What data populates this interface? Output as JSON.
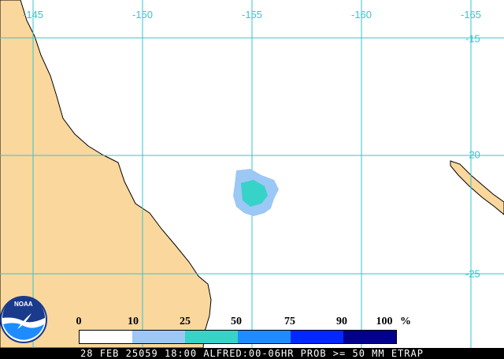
{
  "map": {
    "longitude_labels": [
      "-145",
      "-150",
      "-155",
      "-160",
      "-165"
    ],
    "latitude_labels": [
      "-15",
      "-20",
      "-25"
    ]
  },
  "legend": {
    "ticks": [
      "0",
      "10",
      "25",
      "50",
      "75",
      "90",
      "100"
    ],
    "unit": "%",
    "colors": [
      "#ffffff",
      "#9bc8f5",
      "#37d3c8",
      "#1e8cff",
      "#0028ff",
      "#0000c8",
      "#00008c"
    ]
  },
  "logo": {
    "text": "NOAA"
  },
  "footer": {
    "text": "28 FEB 25059 18:00 ALFRED:00-06HR PROB >= 50 MM ETRAP"
  },
  "colors": {
    "land": "#fad79c",
    "grid": "#35c6d0",
    "coastline": "#000000"
  }
}
